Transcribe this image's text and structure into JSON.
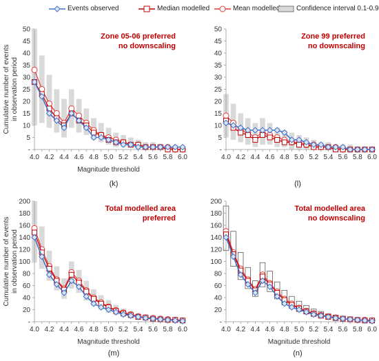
{
  "legend": {
    "events_observed": "Events observed",
    "median_modelled": "Median modelled",
    "mean_modelled": "Mean modelled",
    "confidence": "Confidence interval 0.1-0.9"
  },
  "colors": {
    "observed": "#4472c4",
    "median": "#c00000",
    "mean": "#e23a3a",
    "ci_fill": "#d9d9d9",
    "ci_outline": "#595959",
    "annotation": "#c00000"
  },
  "chart_data": [
    {
      "type": "line",
      "panel_label": "(k)",
      "annotation": [
        "Zone 05-06 preferred",
        "no downscaling"
      ],
      "ylabel": "Cumulative number of events in observation period",
      "xlabel": "Magnitude threshold",
      "ylim": [
        0,
        50
      ],
      "yticks": [
        "-",
        "5",
        "10",
        "15",
        "20",
        "25",
        "30",
        "35",
        "40",
        "45",
        "50"
      ],
      "xtick_labels": [
        "4.0",
        "4.2",
        "4.4",
        "4.6",
        "4.8",
        "5.0",
        "5.2",
        "5.4",
        "5.6",
        "5.8",
        "6.0"
      ],
      "ci_style": "filled",
      "x": [
        4.0,
        4.1,
        4.2,
        4.3,
        4.4,
        4.5,
        4.6,
        4.7,
        4.8,
        4.9,
        5.0,
        5.1,
        5.2,
        5.3,
        5.4,
        5.5,
        5.6,
        5.7,
        5.8,
        5.9,
        6.0
      ],
      "series": [
        {
          "name": "Events observed",
          "values": [
            28,
            22,
            15,
            12,
            9,
            15,
            12,
            9,
            5,
            5,
            4,
            3,
            2,
            2,
            1,
            1,
            1,
            1,
            1,
            1,
            1
          ]
        },
        {
          "name": "Median modelled",
          "values": [
            28,
            23,
            17,
            13,
            10,
            15,
            12,
            10,
            7,
            6,
            4,
            3,
            3,
            2,
            2,
            1,
            1,
            1,
            0,
            0,
            0
          ]
        },
        {
          "name": "Mean modelled",
          "values": [
            33,
            25,
            19,
            15,
            11,
            17,
            14,
            11,
            8,
            6,
            5,
            4,
            3,
            2,
            2,
            1,
            1,
            1,
            1,
            0,
            0
          ]
        }
      ],
      "confidence_interval": {
        "low": [
          10,
          11,
          9,
          7,
          5,
          9,
          7,
          6,
          4,
          3,
          2,
          1,
          1,
          1,
          0,
          0,
          0,
          0,
          0,
          0,
          0
        ],
        "high": [
          50,
          39,
          31,
          25,
          21,
          25,
          21,
          17,
          13,
          11,
          9,
          7,
          6,
          5,
          4,
          3,
          3,
          2,
          2,
          2,
          1
        ]
      }
    },
    {
      "type": "line",
      "panel_label": "(l)",
      "annotation": [
        "Zone 99 preferred",
        "no downscaling"
      ],
      "ylabel": "",
      "xlabel": "",
      "ylim": [
        0,
        50
      ],
      "yticks": [
        "-",
        "5",
        "10",
        "15",
        "20",
        "25",
        "30",
        "35",
        "40",
        "45",
        "50"
      ],
      "xtick_labels": [
        "4.0",
        "4.2",
        "4.4",
        "4.6",
        "4.8",
        "5.0",
        "5.2",
        "5.4",
        "5.6",
        "5.8",
        "6.0"
      ],
      "ci_style": "filled",
      "x": [
        4.0,
        4.1,
        4.2,
        4.3,
        4.4,
        4.5,
        4.6,
        4.7,
        4.8,
        4.9,
        5.0,
        5.1,
        5.2,
        5.3,
        5.4,
        5.5,
        5.6,
        5.7,
        5.8,
        5.9,
        6.0
      ],
      "series": [
        {
          "name": "Events observed",
          "values": [
            11,
            10,
            9,
            8,
            8,
            8,
            8,
            8,
            7,
            4,
            4,
            3,
            2,
            2,
            1,
            1,
            1,
            0,
            0,
            0,
            0
          ]
        },
        {
          "name": "Median modelled",
          "values": [
            12,
            9,
            7,
            6,
            4,
            6,
            5,
            4,
            3,
            3,
            2,
            2,
            1,
            1,
            1,
            0,
            0,
            0,
            0,
            0,
            0
          ]
        },
        {
          "name": "Mean modelled",
          "values": [
            14,
            11,
            8,
            7,
            5,
            7,
            6,
            5,
            4,
            3,
            3,
            2,
            2,
            1,
            1,
            1,
            0,
            0,
            0,
            0,
            0
          ]
        }
      ],
      "confidence_interval": {
        "low": [
          5,
          4,
          3,
          2,
          1,
          2,
          2,
          1,
          1,
          0,
          0,
          0,
          0,
          0,
          0,
          0,
          0,
          0,
          0,
          0,
          0
        ],
        "high": [
          23,
          19,
          15,
          13,
          11,
          13,
          11,
          9,
          8,
          7,
          6,
          5,
          4,
          3,
          3,
          2,
          2,
          2,
          1,
          1,
          1
        ]
      }
    },
    {
      "type": "line",
      "panel_label": "(m)",
      "annotation": [
        "Total modelled area",
        "preferred"
      ],
      "ylabel": "Cumulative number of events in observation period",
      "xlabel": "Magnitude threshold",
      "ylim": [
        0,
        200
      ],
      "yticks": [
        "-",
        "20",
        "40",
        "60",
        "80",
        "100",
        "120",
        "140",
        "160",
        "180",
        "200"
      ],
      "xtick_labels": [
        "4.0",
        "4.2",
        "4.4",
        "4.6",
        "4.8",
        "5.0",
        "5.2",
        "5.4",
        "5.6",
        "5.8",
        "6.0"
      ],
      "ci_style": "filled",
      "x": [
        4.0,
        4.1,
        4.2,
        4.3,
        4.4,
        4.5,
        4.6,
        4.7,
        4.8,
        4.9,
        5.0,
        5.1,
        5.2,
        5.3,
        5.4,
        5.5,
        5.6,
        5.7,
        5.8,
        5.9,
        6.0
      ],
      "series": [
        {
          "name": "Events observed",
          "values": [
            140,
            108,
            78,
            62,
            48,
            68,
            58,
            42,
            30,
            24,
            20,
            16,
            12,
            10,
            8,
            6,
            5,
            4,
            3,
            2,
            1
          ]
        },
        {
          "name": "Median modelled",
          "values": [
            148,
            115,
            88,
            68,
            53,
            78,
            65,
            50,
            38,
            30,
            24,
            18,
            14,
            11,
            8,
            7,
            5,
            4,
            3,
            3,
            2
          ]
        },
        {
          "name": "Mean modelled",
          "values": [
            155,
            120,
            92,
            70,
            55,
            82,
            68,
            52,
            40,
            32,
            25,
            19,
            15,
            12,
            9,
            7,
            6,
            5,
            4,
            3,
            2
          ]
        }
      ],
      "confidence_interval": {
        "low": [
          98,
          88,
          68,
          52,
          38,
          55,
          48,
          35,
          26,
          20,
          15,
          11,
          8,
          6,
          5,
          3,
          2,
          2,
          1,
          1,
          1
        ],
        "high": [
          200,
          158,
          118,
          92,
          72,
          100,
          86,
          68,
          54,
          44,
          36,
          28,
          22,
          18,
          14,
          12,
          9,
          7,
          6,
          5,
          4
        ]
      }
    },
    {
      "type": "line",
      "panel_label": "(n)",
      "annotation": [
        "Total modelled area",
        "no downscaling"
      ],
      "ylabel": "",
      "xlabel": "Magnitude threshold",
      "ylim": [
        0,
        200
      ],
      "yticks": [
        "-",
        "20",
        "40",
        "60",
        "80",
        "100",
        "120",
        "140",
        "160",
        "180",
        "200"
      ],
      "xtick_labels": [
        "4.0",
        "4.2",
        "4.4",
        "4.6",
        "4.8",
        "5.0",
        "5.2",
        "5.4",
        "5.6",
        "5.8",
        "6.0"
      ],
      "ci_style": "outline",
      "x": [
        4.0,
        4.1,
        4.2,
        4.3,
        4.4,
        4.5,
        4.6,
        4.7,
        4.8,
        4.9,
        5.0,
        5.1,
        5.2,
        5.3,
        5.4,
        5.5,
        5.6,
        5.7,
        5.8,
        5.9,
        6.0
      ],
      "series": [
        {
          "name": "Events observed",
          "values": [
            140,
            108,
            78,
            62,
            48,
            68,
            58,
            42,
            30,
            24,
            20,
            16,
            12,
            10,
            8,
            6,
            5,
            4,
            3,
            2,
            1
          ]
        },
        {
          "name": "Median modelled",
          "values": [
            145,
            112,
            85,
            68,
            52,
            75,
            62,
            48,
            36,
            28,
            22,
            17,
            13,
            10,
            8,
            6,
            5,
            4,
            3,
            2,
            2
          ]
        },
        {
          "name": "Mean modelled",
          "values": [
            150,
            115,
            88,
            70,
            54,
            78,
            64,
            50,
            38,
            30,
            23,
            18,
            14,
            11,
            9,
            7,
            5,
            4,
            3,
            3,
            2
          ]
        }
      ],
      "confidence_interval": {
        "low": [
          118,
          92,
          70,
          55,
          42,
          58,
          50,
          38,
          28,
          22,
          17,
          13,
          10,
          8,
          6,
          5,
          4,
          3,
          2,
          1,
          1
        ],
        "high": [
          192,
          150,
          115,
          90,
          68,
          98,
          84,
          66,
          52,
          42,
          34,
          27,
          21,
          17,
          13,
          11,
          9,
          7,
          6,
          5,
          4
        ]
      }
    }
  ]
}
